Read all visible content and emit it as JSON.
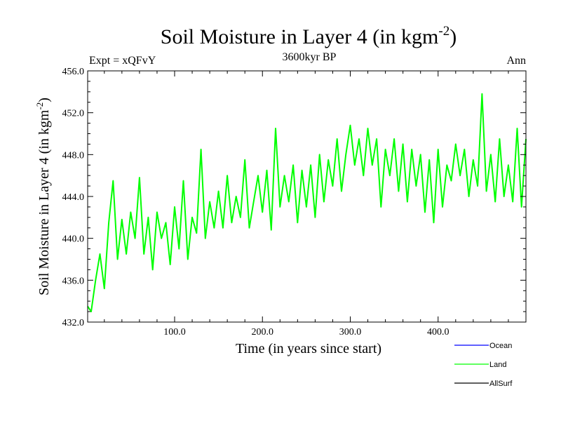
{
  "chart_data": {
    "type": "line",
    "title": "Soil Moisture in Layer 4 (in kgm",
    "title_sup": "-2",
    "title_close": ")",
    "subtitle_left": "Expt = xQFvY",
    "subtitle_center": "3600kyr BP",
    "subtitle_right": "Ann",
    "xlabel": "Time (in years since start)",
    "ylabel": "Soil Moisture in Layer 4 (in kgm",
    "ylabel_sup": "-2",
    "ylabel_close": ")",
    "xlim": [
      1,
      500
    ],
    "ylim": [
      432,
      456
    ],
    "xticks": [
      100,
      200,
      300,
      400
    ],
    "xtick_labels": [
      "100.0",
      "200.0",
      "300.0",
      "400.0"
    ],
    "yticks": [
      432,
      436,
      440,
      444,
      448,
      452,
      456
    ],
    "ytick_labels": [
      "432.0",
      "436.0",
      "440.0",
      "444.0",
      "448.0",
      "452.0",
      "456.0"
    ],
    "legend": [
      {
        "name": "Ocean",
        "color": "#0000ff"
      },
      {
        "name": "Land",
        "color": "#00ff00"
      },
      {
        "name": "AllSurf",
        "color": "#000000"
      }
    ],
    "series": [
      {
        "name": "Land",
        "color": "#00ff00",
        "x": [
          1,
          5,
          10,
          15,
          20,
          25,
          30,
          35,
          40,
          45,
          50,
          55,
          60,
          65,
          70,
          75,
          80,
          85,
          90,
          95,
          100,
          105,
          110,
          115,
          120,
          125,
          130,
          135,
          140,
          145,
          150,
          155,
          160,
          165,
          170,
          175,
          180,
          185,
          190,
          195,
          200,
          205,
          210,
          215,
          220,
          225,
          230,
          235,
          240,
          245,
          250,
          255,
          260,
          265,
          270,
          275,
          280,
          285,
          290,
          295,
          300,
          305,
          310,
          315,
          320,
          325,
          330,
          335,
          340,
          345,
          350,
          355,
          360,
          365,
          370,
          375,
          380,
          385,
          390,
          395,
          400,
          405,
          410,
          415,
          420,
          425,
          430,
          435,
          440,
          445,
          450,
          455,
          460,
          465,
          470,
          475,
          480,
          485,
          490,
          495,
          500
        ],
        "values": [
          433.5,
          433.0,
          436.0,
          438.5,
          435.2,
          441.5,
          445.5,
          438.0,
          441.8,
          438.5,
          442.5,
          440.0,
          445.8,
          438.5,
          442.0,
          437.0,
          442.5,
          440.0,
          441.5,
          437.5,
          443.0,
          439.0,
          445.5,
          438.0,
          442.0,
          440.5,
          448.5,
          440.0,
          443.5,
          441.0,
          444.5,
          441.0,
          446.0,
          441.5,
          444.0,
          442.0,
          447.5,
          441.0,
          443.5,
          446.0,
          442.5,
          446.5,
          440.8,
          450.5,
          443.0,
          446.0,
          443.5,
          447.0,
          441.5,
          446.5,
          443.0,
          447.0,
          442.0,
          448.0,
          443.5,
          447.5,
          445.0,
          449.5,
          444.5,
          448.0,
          450.8,
          447.0,
          449.5,
          446.0,
          450.5,
          447.0,
          449.5,
          443.0,
          448.5,
          446.0,
          449.5,
          444.5,
          449.0,
          443.5,
          448.5,
          445.0,
          448.0,
          442.5,
          447.5,
          441.5,
          448.5,
          443.0,
          447.0,
          445.5,
          449.0,
          446.0,
          448.5,
          444.0,
          447.5,
          445.0,
          453.8,
          444.5,
          448.0,
          443.5,
          449.5,
          444.0,
          447.0,
          443.5,
          450.5,
          443.0,
          449.5
        ]
      }
    ]
  }
}
